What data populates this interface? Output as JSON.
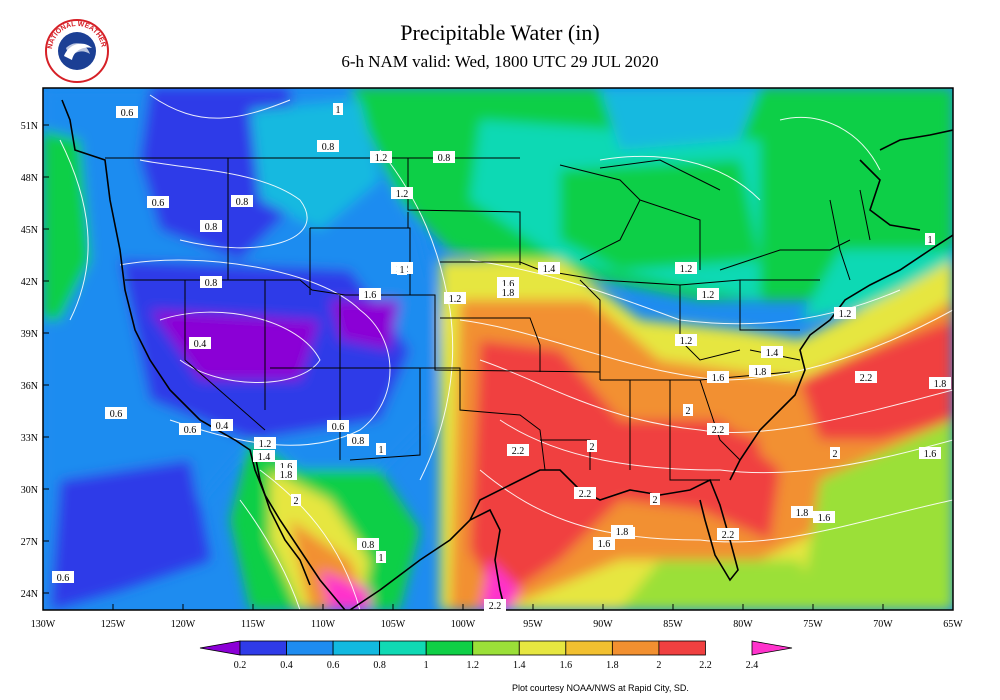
{
  "header": {
    "title": "Precipitable Water (in)",
    "subtitle": "6-h NAM valid: Wed, 1800 UTC 29 JUL 2020"
  },
  "logo": {
    "text": "NATIONAL WEATHER SERVICE",
    "colors": [
      "#d62027",
      "#1b3f94",
      "#ffffff"
    ]
  },
  "axes": {
    "lat_labels": [
      "51N",
      "48N",
      "45N",
      "42N",
      "39N",
      "36N",
      "33N",
      "30N",
      "27N",
      "24N"
    ],
    "lon_labels": [
      "130W",
      "125W",
      "120W",
      "115W",
      "110W",
      "105W",
      "100W",
      "95W",
      "90W",
      "85W",
      "80W",
      "75W",
      "70W",
      "65W"
    ]
  },
  "colorbar": {
    "labels": [
      "0.2",
      "0.4",
      "0.6",
      "0.8",
      "1",
      "1.2",
      "1.4",
      "1.6",
      "1.8",
      "2",
      "2.2",
      "2.4"
    ],
    "colors": [
      "#8b00d6",
      "#2f3be8",
      "#1e8cf0",
      "#12b9e0",
      "#10d9b4",
      "#0fcf46",
      "#9be038",
      "#e6e640",
      "#f2c030",
      "#f29030",
      "#f04040",
      "#ff33cc"
    ]
  },
  "contour_labels": [
    "0.6",
    "1",
    "0.8",
    "1.2",
    "0.8",
    "1.2",
    "1.2",
    "0.6",
    "0.8",
    "0.8",
    "1",
    "1.4",
    "1.2",
    "1",
    "1.6",
    "1.8",
    "1.2",
    "1.2",
    "0.8",
    "1.6",
    "1.2",
    "0.4",
    "1.2",
    "1.4",
    "1.6",
    "1.8",
    "2.2",
    "1.8",
    "0.6",
    "0.6",
    "0.4",
    "1.2",
    "1.4",
    "0.6",
    "0.8",
    "1",
    "2.2",
    "2",
    "2",
    "2.2",
    "2",
    "1.6",
    "1.8",
    "2.2",
    "2",
    "1.8",
    "1.6",
    "1.6",
    "2",
    "1.6",
    "1.8",
    "0.8",
    "1",
    "2.2",
    "1.8",
    "1.6",
    "0.6",
    "2.2"
  ],
  "credit": "Plot courtesy NOAA/NWS at Rapid City, SD."
}
